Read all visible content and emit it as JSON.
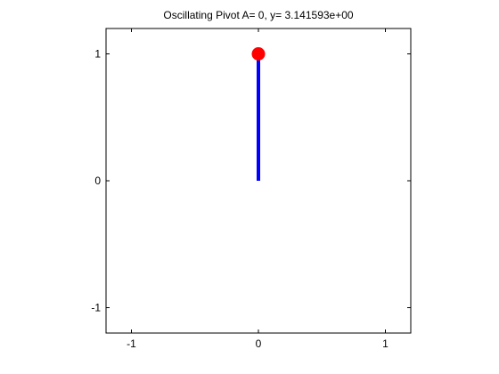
{
  "chart_data": {
    "type": "line",
    "title": "Oscillating Pivot A= 0, y= 3.141593e+00",
    "xlabel": "",
    "ylabel": "",
    "xlim": [
      -1.2,
      1.2
    ],
    "ylim": [
      -1.2,
      1.2
    ],
    "xticks": [
      -1,
      0,
      1
    ],
    "yticks": [
      -1,
      0,
      1
    ],
    "xtick_labels": [
      "-1",
      "0",
      "1"
    ],
    "ytick_labels": [
      "-1",
      "0",
      "1"
    ],
    "grid": false,
    "series": [
      {
        "kind": "rod",
        "x": [
          0,
          0
        ],
        "y": [
          0,
          1
        ],
        "color": "#0000ff"
      },
      {
        "kind": "bob",
        "x": [
          0
        ],
        "y": [
          1
        ],
        "color": "#ff0000"
      }
    ]
  }
}
